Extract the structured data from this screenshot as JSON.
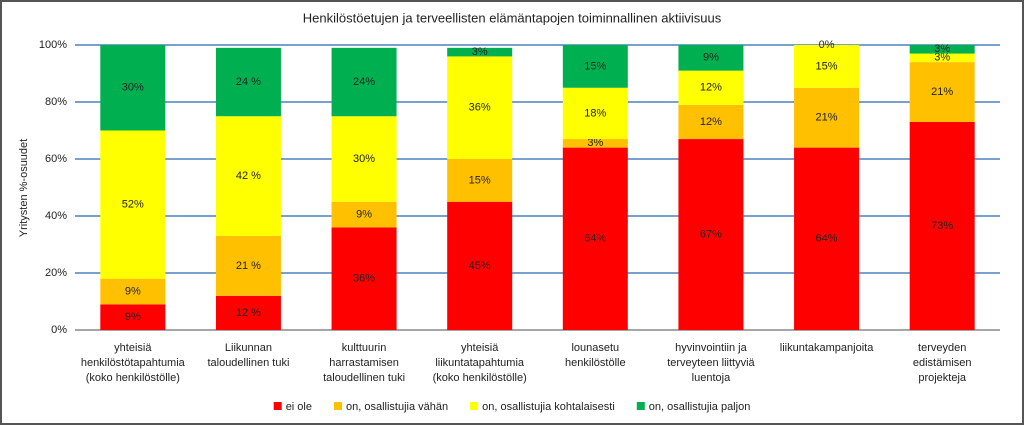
{
  "chart_data": {
    "type": "stacked_bar",
    "title": "Henkilöstöetujen ja terveellisten elämäntapojen toiminnallinen aktiivisuus",
    "ylabel": "Yritysten %-osuudet",
    "categories": [
      "yhteisiä\nhenkilöstötapahtumia\n(koko henkilöstölle)",
      "Liikunnan\ntaloudellinen tuki",
      "kulttuurin\nharrastamisen\ntaloudellinen tuki",
      "yhteisiä\nliikuntatapahtumia\n(koko henkilöstölle)",
      "lounasetu\nhenkilöstölle",
      "hyvinvointiin ja\nterveyteen liittyviä\nluentoja",
      "liikuntakampanjoita",
      "terveyden\nedistämisen\nprojekteja"
    ],
    "series": [
      {
        "name": "ei ole",
        "color": "#ff0000",
        "values": [
          9,
          12,
          36,
          45,
          64,
          67,
          64,
          73
        ],
        "value_labels": [
          "9%",
          "12 %",
          "36%",
          "45%",
          "64%",
          "67%",
          "64%",
          "73%"
        ]
      },
      {
        "name": "on, osallistujia vähän",
        "color": "#ffc000",
        "values": [
          9,
          21,
          9,
          15,
          3,
          12,
          21,
          21
        ],
        "value_labels": [
          "9%",
          "21 %",
          "9%",
          "15%",
          "3%",
          "12%",
          "21%",
          "21%"
        ]
      },
      {
        "name": "on, osallistujia kohtalaisesti",
        "color": "#ffff00",
        "values": [
          52,
          42,
          30,
          36,
          18,
          12,
          15,
          3
        ],
        "value_labels": [
          "52%",
          "42 %",
          "30%",
          "36%",
          "18%",
          "12%",
          "15%",
          "3%"
        ]
      },
      {
        "name": "on, osallistujia paljon",
        "color": "#00b050",
        "values": [
          30,
          24,
          24,
          3,
          15,
          9,
          0,
          3
        ],
        "value_labels": [
          "30%",
          "24 %",
          "24%",
          "3%",
          "15%",
          "9%",
          "0%",
          "3%"
        ]
      }
    ],
    "ylim": [
      0,
      100
    ],
    "yticks": [
      {
        "value": 0,
        "label": "0%"
      },
      {
        "value": 20,
        "label": "20%"
      },
      {
        "value": 40,
        "label": "40%"
      },
      {
        "value": 60,
        "label": "60%"
      },
      {
        "value": 80,
        "label": "80%"
      },
      {
        "value": 100,
        "label": "100%"
      }
    ],
    "grid": true,
    "legend": "bottom"
  }
}
